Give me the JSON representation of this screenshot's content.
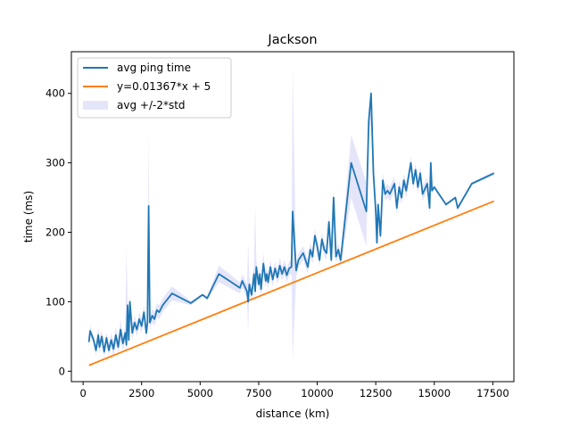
{
  "chart_data": {
    "type": "line",
    "title": "Jackson",
    "xlabel": "distance (km)",
    "ylabel": "time (ms)",
    "xlim": [
      -500,
      18400
    ],
    "ylim": [
      -15,
      460
    ],
    "x_ticks": [
      0,
      2500,
      5000,
      7500,
      10000,
      12500,
      15000,
      17500
    ],
    "y_ticks": [
      0,
      100,
      200,
      300,
      400
    ],
    "x_tick_labels": [
      "0",
      "2500",
      "5000",
      "7500",
      "10000",
      "12500",
      "15000",
      "17500"
    ],
    "y_tick_labels": [
      "0",
      "100",
      "200",
      "300",
      "400"
    ],
    "grid": false,
    "legend_position": "upper-left",
    "colors": {
      "avg": "#1f77b4",
      "fit": "#ff7f0e",
      "band": "#dcdcf8"
    },
    "series": [
      {
        "name": "avg ping time",
        "kind": "line",
        "x": [
          250,
          300,
          450,
          550,
          650,
          700,
          800,
          900,
          1000,
          1100,
          1200,
          1300,
          1400,
          1500,
          1600,
          1700,
          1800,
          1850,
          1900,
          1950,
          2000,
          2100,
          2200,
          2300,
          2400,
          2500,
          2600,
          2700,
          2750,
          2800,
          2850,
          2950,
          3050,
          3150,
          3250,
          3400,
          3800,
          4600,
          5100,
          5300,
          5800,
          6700,
          6800,
          7000,
          7050,
          7100,
          7200,
          7300,
          7350,
          7400,
          7500,
          7550,
          7600,
          7700,
          7800,
          7850,
          7900,
          8000,
          8100,
          8200,
          8300,
          8400,
          8500,
          8600,
          8700,
          8800,
          8900,
          8950,
          9100,
          9200,
          9400,
          9600,
          9700,
          9800,
          9900,
          10000,
          10100,
          10200,
          10300,
          10400,
          10500,
          10600,
          10700,
          10800,
          10900,
          11000,
          11450,
          12100,
          12200,
          12300,
          12400,
          12500,
          12550,
          12600,
          12700,
          12800,
          12900,
          13000,
          13100,
          13300,
          13400,
          13500,
          13600,
          13700,
          13800,
          13900,
          14000,
          14100,
          14200,
          14300,
          14400,
          14500,
          14700,
          14800,
          14850,
          14900,
          15000,
          15500,
          15900,
          16000,
          16600,
          17550
        ],
        "y": [
          42,
          58,
          45,
          30,
          52,
          35,
          50,
          28,
          48,
          30,
          45,
          32,
          52,
          35,
          60,
          40,
          55,
          38,
          95,
          45,
          100,
          55,
          70,
          60,
          75,
          65,
          85,
          55,
          70,
          238,
          70,
          80,
          75,
          88,
          85,
          95,
          112,
          98,
          110,
          105,
          140,
          120,
          130,
          115,
          100,
          125,
          110,
          140,
          115,
          150,
          125,
          140,
          118,
          155,
          130,
          140,
          128,
          150,
          132,
          148,
          135,
          152,
          140,
          150,
          138,
          148,
          150,
          230,
          145,
          160,
          170,
          150,
          175,
          165,
          195,
          180,
          160,
          190,
          175,
          170,
          215,
          160,
          250,
          165,
          175,
          160,
          300,
          230,
          360,
          400,
          285,
          230,
          185,
          240,
          195,
          275,
          255,
          260,
          255,
          270,
          235,
          265,
          250,
          275,
          260,
          280,
          300,
          270,
          290,
          265,
          285,
          255,
          270,
          235,
          300,
          260,
          265,
          240,
          250,
          235,
          270,
          285
        ],
        "lower": [
          42,
          50,
          40,
          22,
          40,
          25,
          40,
          20,
          40,
          22,
          35,
          20,
          40,
          25,
          45,
          30,
          45,
          20,
          85,
          35,
          90,
          45,
          60,
          50,
          65,
          55,
          75,
          45,
          60,
          150,
          60,
          70,
          65,
          78,
          75,
          85,
          102,
          95,
          108,
          102,
          128,
          112,
          120,
          105,
          55,
          115,
          100,
          125,
          100,
          140,
          115,
          130,
          108,
          140,
          120,
          130,
          118,
          140,
          122,
          138,
          125,
          140,
          130,
          140,
          128,
          138,
          140,
          15,
          135,
          150,
          160,
          140,
          165,
          155,
          185,
          170,
          150,
          180,
          165,
          160,
          205,
          150,
          240,
          155,
          165,
          150,
          250,
          180,
          355,
          350,
          275,
          220,
          175,
          230,
          185,
          265,
          245,
          250,
          245,
          260,
          225,
          255,
          240,
          265,
          250,
          270,
          290,
          260,
          280,
          255,
          275,
          245,
          260,
          225,
          290,
          255,
          262,
          238,
          248,
          232,
          268,
          282
        ],
        "upper": [
          42,
          66,
          50,
          38,
          64,
          45,
          60,
          36,
          56,
          38,
          55,
          44,
          64,
          45,
          75,
          50,
          65,
          176,
          105,
          55,
          110,
          65,
          80,
          70,
          85,
          75,
          95,
          65,
          80,
          348,
          80,
          90,
          85,
          98,
          95,
          105,
          122,
          101,
          112,
          108,
          152,
          128,
          140,
          125,
          185,
          135,
          120,
          155,
          238,
          160,
          135,
          150,
          128,
          170,
          140,
          150,
          138,
          160,
          142,
          158,
          145,
          164,
          150,
          160,
          148,
          158,
          160,
          440,
          155,
          170,
          180,
          160,
          185,
          175,
          205,
          190,
          170,
          200,
          185,
          180,
          225,
          170,
          260,
          175,
          185,
          170,
          340,
          272,
          365,
          410,
          295,
          240,
          195,
          250,
          205,
          285,
          265,
          270,
          265,
          280,
          245,
          275,
          260,
          285,
          270,
          290,
          310,
          280,
          300,
          275,
          295,
          265,
          280,
          245,
          310,
          265,
          268,
          242,
          252,
          238,
          272,
          288
        ]
      },
      {
        "name": "y=0.01367*x + 5",
        "kind": "line",
        "x": [
          250,
          17550
        ],
        "y": [
          8.4,
          244.9
        ]
      },
      {
        "name": "avg +/-2*std",
        "kind": "band"
      }
    ]
  }
}
